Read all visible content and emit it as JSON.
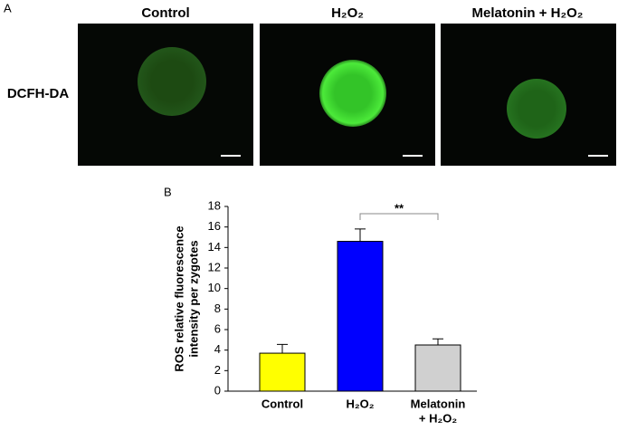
{
  "panel_a": {
    "label": "A",
    "columns": [
      "Control",
      "H₂O₂",
      "Melatonin  + H₂O₂"
    ],
    "row_label": "DCFH-DA"
  },
  "chart_data": {
    "type": "bar",
    "panel_label": "B",
    "ylabel": [
      "ROS relative fluorescence",
      "intensity per zygotes"
    ],
    "categories": [
      [
        "Control"
      ],
      [
        "H₂O₂"
      ],
      [
        "Melatonin",
        "+ H₂O₂"
      ]
    ],
    "values": [
      3.7,
      14.6,
      4.5
    ],
    "errors": [
      0.85,
      1.2,
      0.6
    ],
    "colors": [
      "#ffff00",
      "#0000ff",
      "#d0d0d0"
    ],
    "ylim": [
      0,
      18
    ],
    "yticks": [
      0,
      2,
      4,
      6,
      8,
      10,
      12,
      14,
      16,
      18
    ],
    "annotation": "**",
    "annotation_between": [
      1,
      2
    ]
  }
}
